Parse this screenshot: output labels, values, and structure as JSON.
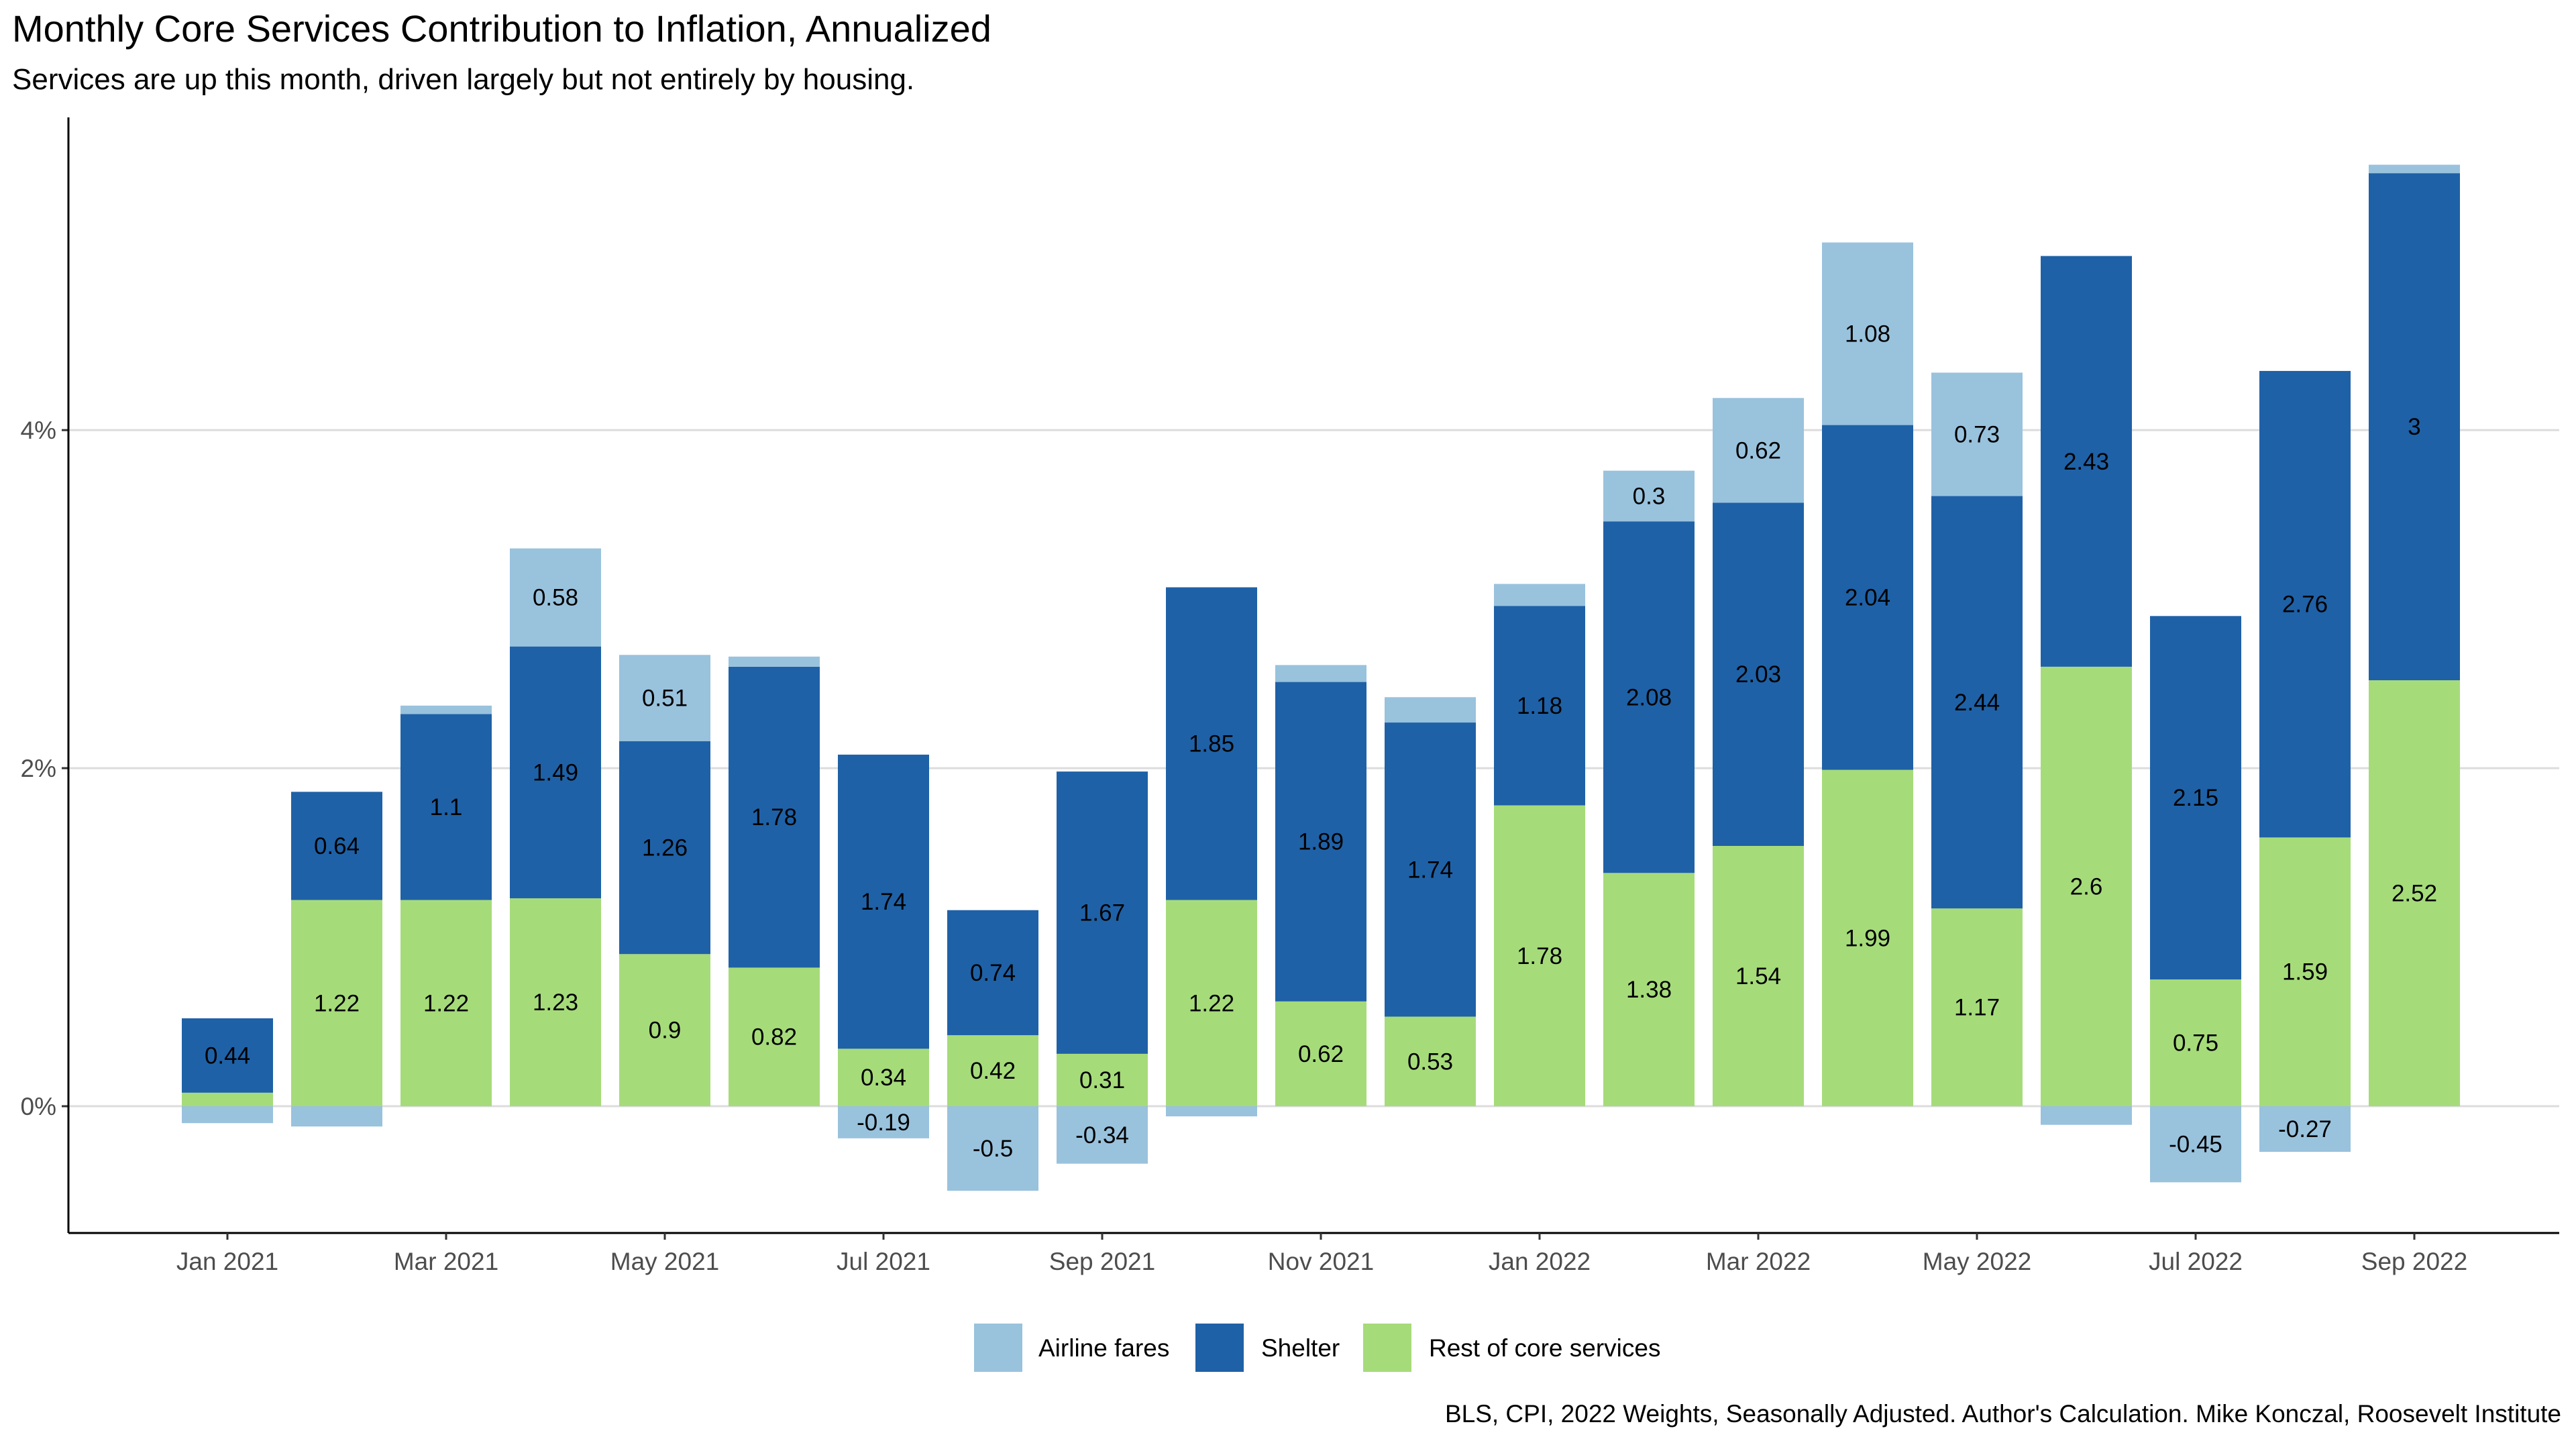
{
  "title": "Monthly Core Services Contribution to Inflation, Annualized",
  "subtitle": "Services are up this month, driven largely but not entirely by housing.",
  "caption": "BLS, CPI, 2022 Weights, Seasonally Adjusted. Author's Calculation. Mike Konczal, Roosevelt Institute",
  "colors": {
    "airline": "#99C2DD",
    "shelter": "#1F61A6",
    "rest": "#A6DB7A"
  },
  "chart_data": {
    "type": "bar",
    "stacked": true,
    "y_format": "percent",
    "ylim": [
      -0.75,
      5.85
    ],
    "yticks": [
      0,
      2,
      4
    ],
    "ytick_labels": [
      "0%",
      "2%",
      "4%"
    ],
    "grid": "horizontal major",
    "legend_position": "bottom",
    "categories": [
      "2021-01",
      "2021-02",
      "2021-03",
      "2021-04",
      "2021-05",
      "2021-06",
      "2021-07",
      "2021-08",
      "2021-09",
      "2021-10",
      "2021-11",
      "2021-12",
      "2022-01",
      "2022-02",
      "2022-03",
      "2022-04",
      "2022-05",
      "2022-06",
      "2022-07",
      "2022-08",
      "2022-09"
    ],
    "xtick_labels": [
      {
        "category": "2021-01",
        "label": "Jan 2021"
      },
      {
        "category": "2021-03",
        "label": "Mar 2021"
      },
      {
        "category": "2021-05",
        "label": "May 2021"
      },
      {
        "category": "2021-07",
        "label": "Jul 2021"
      },
      {
        "category": "2021-09",
        "label": "Sep 2021"
      },
      {
        "category": "2021-11",
        "label": "Nov 2021"
      },
      {
        "category": "2022-01",
        "label": "Jan 2022"
      },
      {
        "category": "2022-03",
        "label": "Mar 2022"
      },
      {
        "category": "2022-05",
        "label": "May 2022"
      },
      {
        "category": "2022-07",
        "label": "Jul 2022"
      },
      {
        "category": "2022-09",
        "label": "Sep 2022"
      }
    ],
    "series": [
      {
        "key": "rest",
        "name": "Rest of core services",
        "values": [
          0.08,
          1.22,
          1.22,
          1.23,
          0.9,
          0.82,
          0.34,
          0.42,
          0.31,
          1.22,
          0.62,
          0.53,
          1.78,
          1.38,
          1.54,
          1.99,
          1.17,
          2.6,
          0.75,
          1.59,
          2.52
        ],
        "labels": [
          "",
          "1.22",
          "1.22",
          "1.23",
          "0.9",
          "0.82",
          "0.34",
          "0.42",
          "0.31",
          "1.22",
          "0.62",
          "0.53",
          "1.78",
          "1.38",
          "1.54",
          "1.99",
          "1.17",
          "2.6",
          "0.75",
          "1.59",
          "2.52"
        ]
      },
      {
        "key": "shelter",
        "name": "Shelter",
        "values": [
          0.44,
          0.64,
          1.1,
          1.49,
          1.26,
          1.78,
          1.74,
          0.74,
          1.67,
          1.85,
          1.89,
          1.74,
          1.18,
          2.08,
          2.03,
          2.04,
          2.44,
          2.43,
          2.15,
          2.76,
          3.0
        ],
        "labels": [
          "0.44",
          "0.64",
          "1.1",
          "1.49",
          "1.26",
          "1.78",
          "1.74",
          "0.74",
          "1.67",
          "1.85",
          "1.89",
          "1.74",
          "1.18",
          "2.08",
          "2.03",
          "2.04",
          "2.44",
          "2.43",
          "2.15",
          "2.76",
          "3"
        ]
      },
      {
        "key": "airline",
        "name": "Airline fares",
        "values": [
          -0.1,
          -0.12,
          0.05,
          0.58,
          0.51,
          0.06,
          -0.19,
          -0.5,
          -0.34,
          -0.06,
          0.1,
          0.15,
          0.13,
          0.3,
          0.62,
          1.08,
          0.73,
          -0.11,
          -0.45,
          -0.27,
          0.05
        ],
        "labels": [
          "",
          "",
          "",
          "0.58",
          "0.51",
          "",
          "-0.19",
          "-0.5",
          "-0.34",
          "",
          "",
          "",
          "",
          "0.3",
          "0.62",
          "1.08",
          "0.73",
          "",
          "-0.45",
          "-0.27",
          ""
        ]
      }
    ],
    "legend_order": [
      "airline",
      "shelter",
      "rest"
    ]
  }
}
